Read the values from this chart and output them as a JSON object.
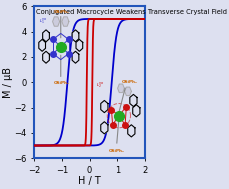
{
  "title": "Conjugated Macrocycle Weakens Transverse Crystal Field and Boosts Axiality",
  "xlabel": "H / T",
  "ylabel": "M / μB",
  "xlim": [
    -2,
    2
  ],
  "ylim": [
    -6,
    6
  ],
  "xticks": [
    -2,
    -1,
    0,
    1,
    2
  ],
  "yticks": [
    -6,
    -4,
    -2,
    0,
    2,
    4,
    6
  ],
  "background_color": "#dde0f0",
  "blue_color": "#0000cc",
  "red_color": "#cc0000",
  "border_color": "#2255bb",
  "title_fontsize": 4.8,
  "axis_label_fontsize": 7,
  "tick_fontsize": 6,
  "blue_sat": 5.0,
  "blue_coercive": 0.8,
  "blue_steepness": 5.5,
  "red_sat": 5.0,
  "red_coercive": 0.1,
  "red_steepness": 40.0
}
